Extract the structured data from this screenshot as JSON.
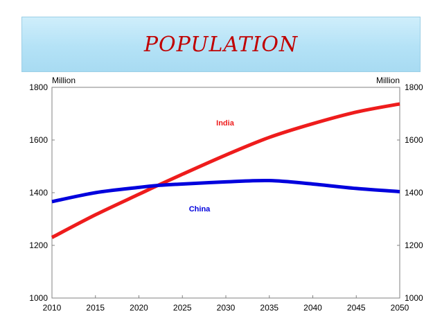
{
  "slide": {
    "title": "POPULATION"
  },
  "chart_data": {
    "type": "line",
    "title": "",
    "xlabel": "",
    "ylabel_left": "Million",
    "ylabel_right": "Million",
    "xlim": [
      2010,
      2050
    ],
    "ylim": [
      1000,
      1800
    ],
    "x_ticks": [
      "2010",
      "2015",
      "2020",
      "2025",
      "2030",
      "2035",
      "2040",
      "2045",
      "2050"
    ],
    "y_ticks": [
      "1000",
      "1200",
      "1400",
      "1600",
      "1800"
    ],
    "x": [
      2010,
      2015,
      2020,
      2022,
      2025,
      2030,
      2035,
      2040,
      2045,
      2050
    ],
    "series": [
      {
        "name": "India",
        "color": "#ee1c1c",
        "values": [
          1230,
          1316,
          1394,
          1425,
          1470,
          1543,
          1610,
          1662,
          1706,
          1737
        ]
      },
      {
        "name": "China",
        "color": "#0000dd",
        "values": [
          1366,
          1400,
          1420,
          1427,
          1433,
          1441,
          1446,
          1433,
          1416,
          1404
        ]
      }
    ],
    "legend": "inline"
  }
}
